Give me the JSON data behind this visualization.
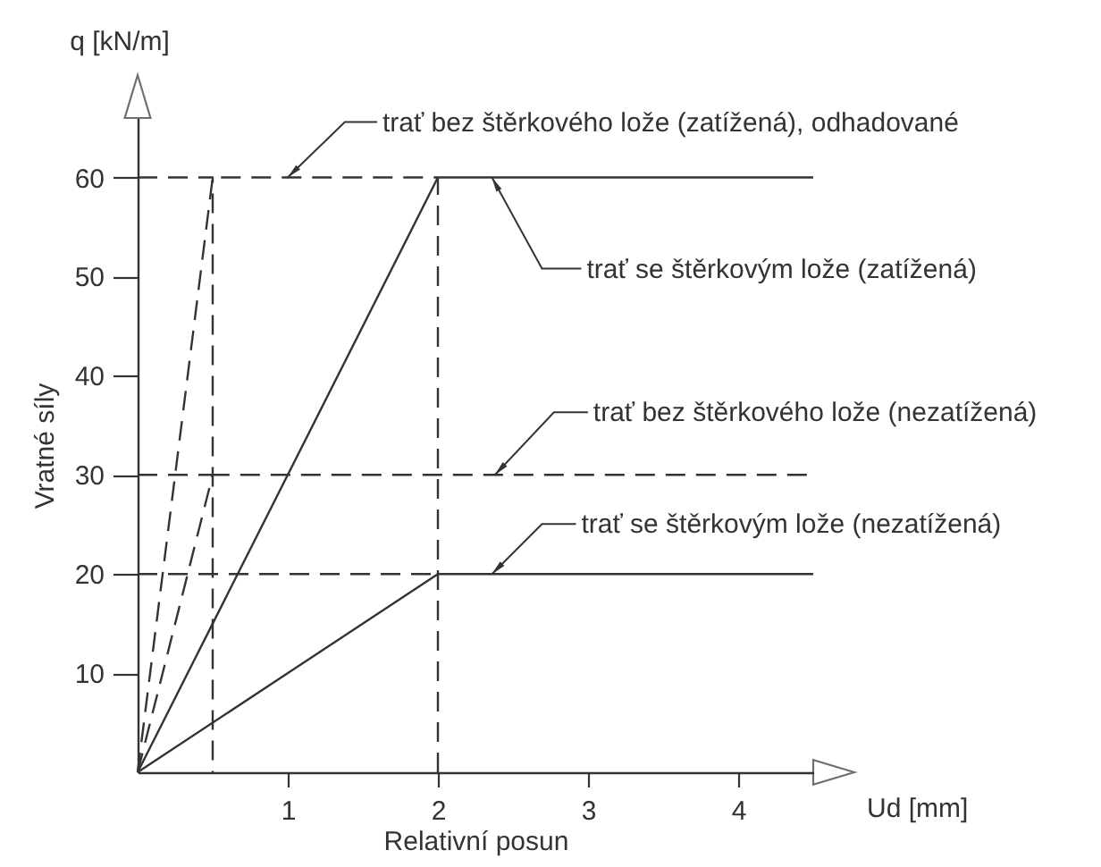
{
  "chart_data": {
    "type": "line",
    "xlabel": "Relativní posun",
    "ylabel": "Vratné síly",
    "annotations": [
      "q [kN/m]",
      "Ud [mm]"
    ],
    "xlim": [
      0,
      4.5
    ],
    "ylim": [
      0,
      66
    ],
    "xticks": [
      1,
      2,
      3,
      4
    ],
    "yticks": [
      10,
      20,
      30,
      40,
      50,
      60
    ],
    "series": [
      {
        "name": "trať bez štěrkového lože (zatížená), odhadované",
        "color": "#333333",
        "line_style": "dashed",
        "x": [
          0,
          0.5,
          2
        ],
        "values": [
          0,
          60,
          60
        ]
      },
      {
        "name": "trať se štěrkovým lože (zatížená)",
        "color": "#333333",
        "line_style": "solid",
        "x": [
          0,
          2,
          4.5
        ],
        "values": [
          0,
          60,
          60
        ]
      },
      {
        "name": "trať bez štěrkového lože (nezatížená)",
        "color": "#333333",
        "line_style": "dashed",
        "x": [
          0,
          0.5,
          4.5
        ],
        "values": [
          0,
          30,
          30
        ]
      },
      {
        "name": "trať se štěrkovým lože (nezatížená)",
        "color": "#333333",
        "line_style": "solid",
        "x": [
          0,
          2,
          4.5
        ],
        "values": [
          0,
          20,
          20
        ]
      },
      {
        "color": "#333333",
        "line_style": "dashed",
        "x": [
          0,
          0.5,
          0.5
        ],
        "values": [
          60,
          60,
          0
        ]
      },
      {
        "color": "#333333",
        "line_style": "dashed",
        "x": [
          0,
          0.5
        ],
        "values": [
          30,
          30
        ]
      },
      {
        "color": "#333333",
        "line_style": "dashed",
        "x": [
          0,
          2
        ],
        "values": [
          20,
          20
        ]
      },
      {
        "color": "#333333",
        "line_style": "dashed",
        "x": [
          2,
          2
        ],
        "values": [
          0,
          60
        ]
      }
    ]
  }
}
